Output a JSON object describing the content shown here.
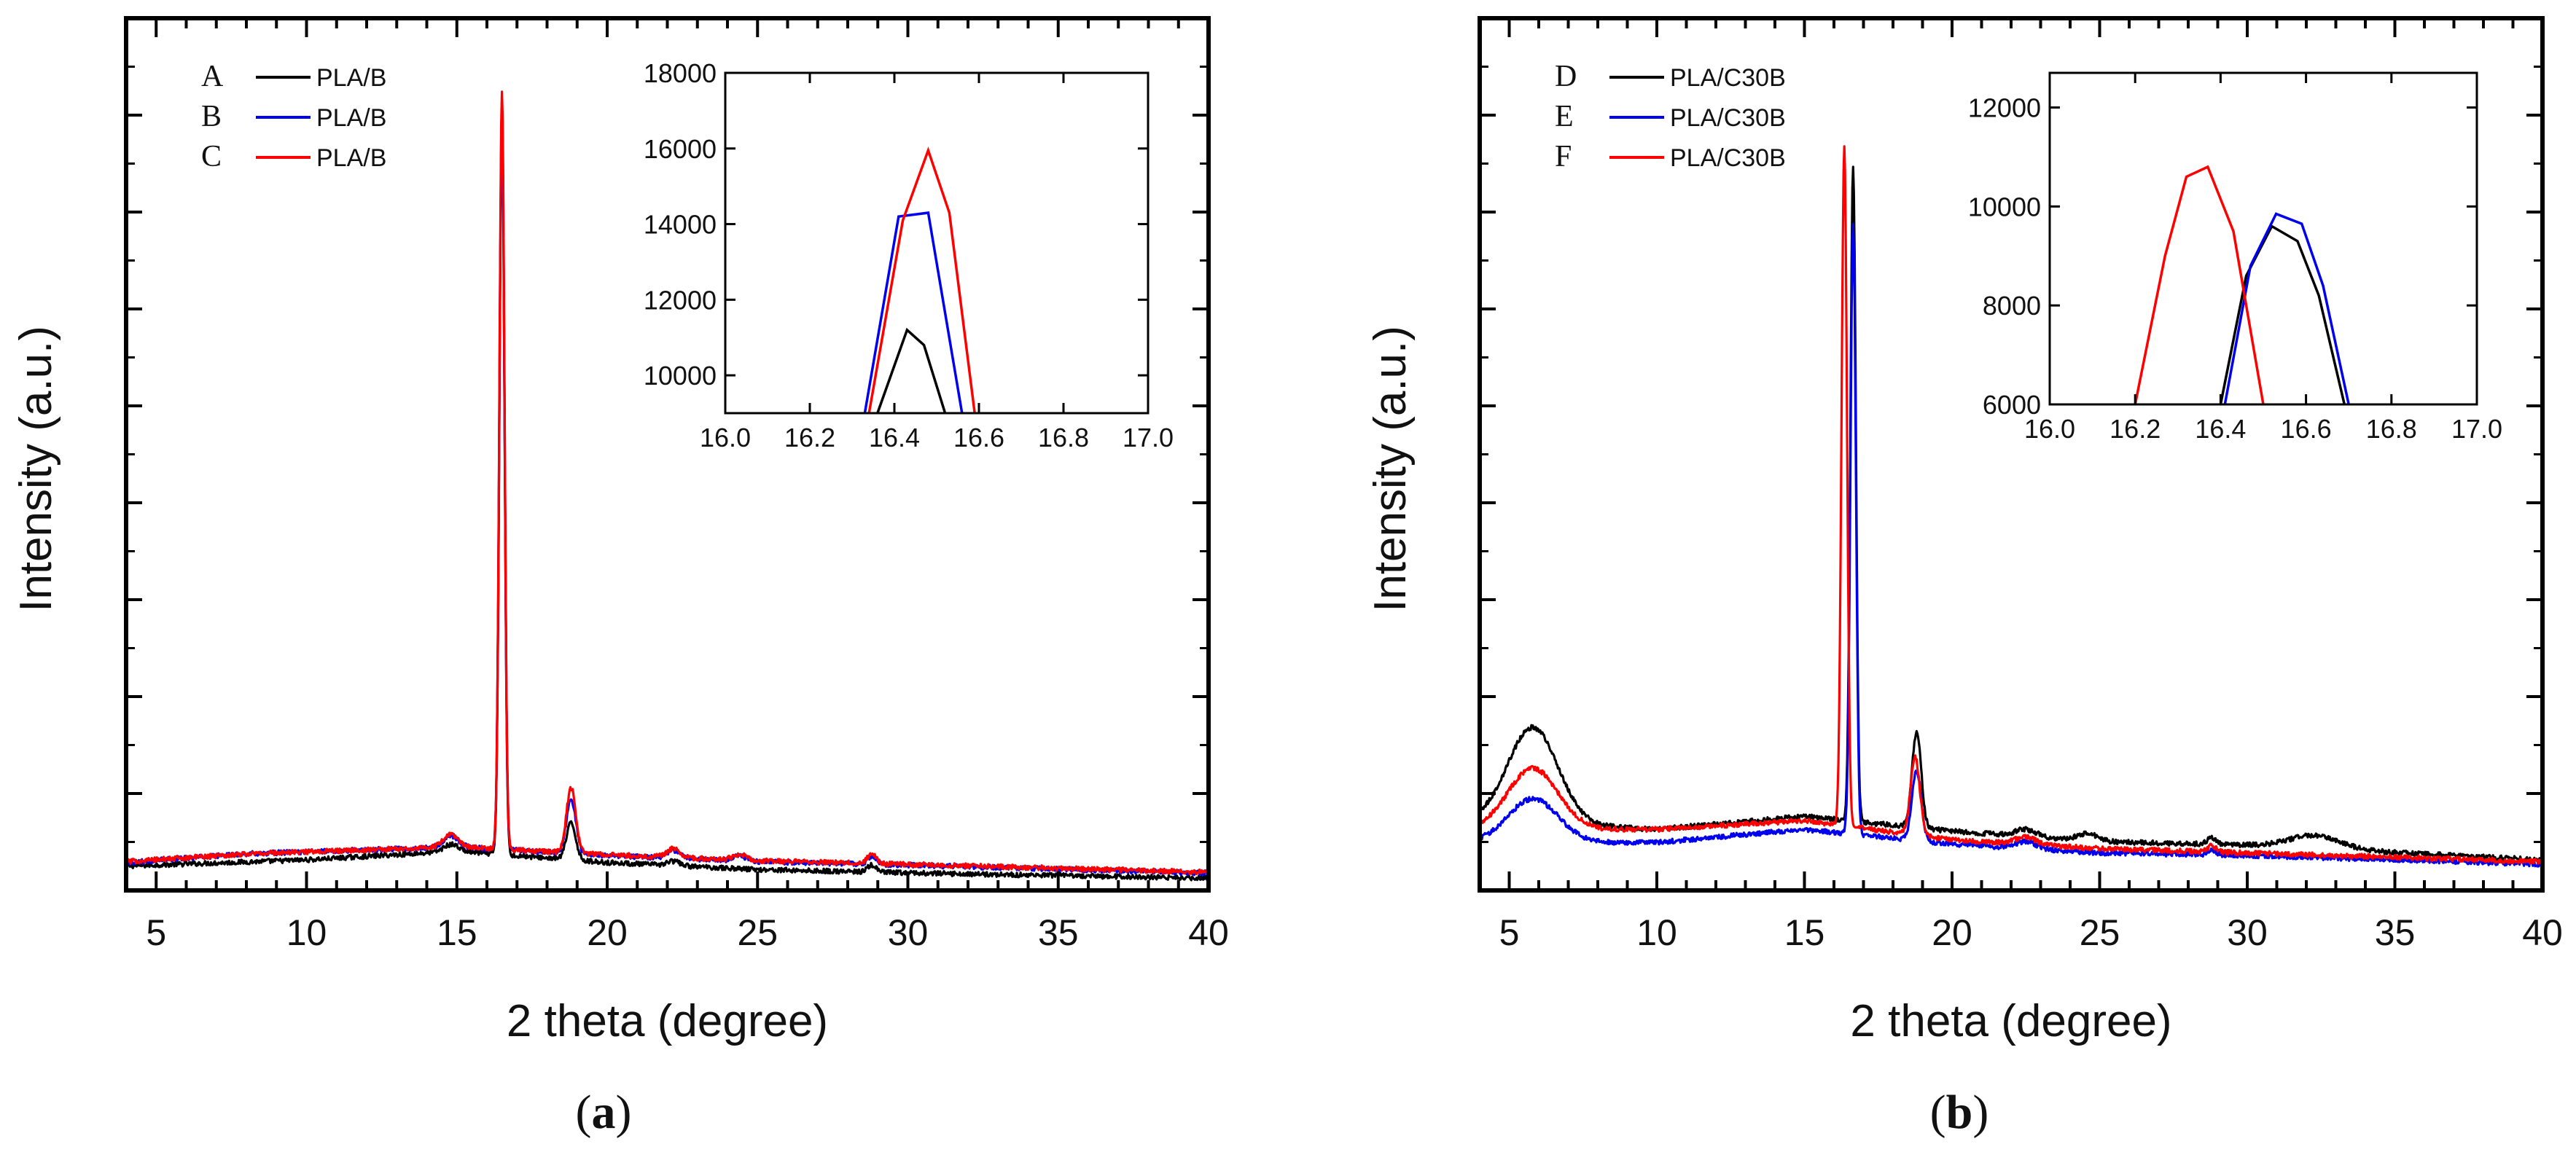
{
  "figure": {
    "captions": [
      "(a)",
      "(b)"
    ],
    "caption_parts": [
      {
        "open": "(",
        "letter": "a",
        "close": ")"
      },
      {
        "open": "(",
        "letter": "b",
        "close": ")"
      }
    ]
  },
  "colors": {
    "black": "#000000",
    "blue": "#0000ee",
    "red": "#ff0000"
  },
  "chart_data": [
    {
      "type": "line",
      "caption": "(a)",
      "xlabel": "2 theta (degree)",
      "ylabel": "Intensity (a.u.)",
      "xlim": [
        4,
        40
      ],
      "ylim": [
        0,
        100
      ],
      "xticks": [
        5,
        10,
        15,
        20,
        25,
        30,
        35,
        40
      ],
      "yticks_minor_count": 9,
      "grid": false,
      "legend": {
        "location": "top-left",
        "entries": [
          {
            "letter": "A",
            "label": "PLA/B",
            "color": "#000000"
          },
          {
            "letter": "B",
            "label": "PLA/B",
            "color": "#0000ee"
          },
          {
            "letter": "C",
            "label": "PLA/B",
            "color": "#ff0000"
          }
        ]
      },
      "series": [
        {
          "name": "A",
          "label": "PLA/B",
          "color": "#000000",
          "baseline": [
            [
              4,
              2.8
            ],
            [
              10,
              3.5
            ],
            [
              15,
              4.5
            ],
            [
              20,
              3.2
            ],
            [
              25,
              2.4
            ],
            [
              30,
              2.0
            ],
            [
              40,
              1.4
            ]
          ],
          "peaks": [
            [
              14.8,
              0.8,
              0.35
            ],
            [
              16.5,
              84,
              0.12
            ],
            [
              18.8,
              4.2,
              0.22
            ],
            [
              22.2,
              0.5,
              0.3
            ],
            [
              28.8,
              0.8,
              0.2
            ]
          ]
        },
        {
          "name": "B",
          "label": "PLA/B",
          "color": "#0000ee",
          "baseline": [
            [
              4,
              3.2
            ],
            [
              8,
              4.2
            ],
            [
              15,
              5.0
            ],
            [
              20,
              4.0
            ],
            [
              25,
              3.3
            ],
            [
              30,
              2.9
            ],
            [
              40,
              2.0
            ]
          ],
          "peaks": [
            [
              14.8,
              1.3,
              0.35
            ],
            [
              16.5,
              85,
              0.12
            ],
            [
              18.8,
              6.2,
              0.22
            ],
            [
              22.2,
              0.9,
              0.3
            ],
            [
              24.4,
              0.6,
              0.3
            ],
            [
              28.8,
              0.9,
              0.2
            ]
          ]
        },
        {
          "name": "C",
          "label": "PLA/B",
          "color": "#ff0000",
          "baseline": [
            [
              4,
              3.3
            ],
            [
              8,
              4.2
            ],
            [
              15,
              5.0
            ],
            [
              20,
              4.1
            ],
            [
              25,
              3.4
            ],
            [
              30,
              3.0
            ],
            [
              40,
              2.1
            ]
          ],
          "peaks": [
            [
              14.8,
              1.4,
              0.35
            ],
            [
              16.5,
              87,
              0.12
            ],
            [
              18.8,
              7.4,
              0.22
            ],
            [
              22.2,
              1.0,
              0.3
            ],
            [
              24.4,
              0.7,
              0.3
            ],
            [
              28.8,
              1.1,
              0.2
            ]
          ]
        }
      ],
      "inset": {
        "xlim": [
          16.0,
          17.0
        ],
        "ylim": [
          9000,
          18000
        ],
        "xticks": [
          "16.0",
          "16.2",
          "16.4",
          "16.6",
          "16.8",
          "17.0"
        ],
        "yticks": [
          "10000",
          "12000",
          "14000",
          "16000",
          "18000"
        ],
        "series": [
          {
            "name": "A",
            "color": "#000000",
            "points": [
              [
                16.36,
                9000
              ],
              [
                16.43,
                11200
              ],
              [
                16.47,
                10800
              ],
              [
                16.52,
                9000
              ]
            ]
          },
          {
            "name": "B",
            "color": "#0000ee",
            "points": [
              [
                16.33,
                9000
              ],
              [
                16.41,
                14200
              ],
              [
                16.48,
                14300
              ],
              [
                16.56,
                9000
              ]
            ]
          },
          {
            "name": "C",
            "color": "#ff0000",
            "points": [
              [
                16.34,
                9000
              ],
              [
                16.42,
                14100
              ],
              [
                16.48,
                15950
              ],
              [
                16.53,
                14300
              ],
              [
                16.59,
                9000
              ]
            ]
          }
        ]
      }
    },
    {
      "type": "line",
      "caption": "(b)",
      "xlabel": "2 theta (degree)",
      "ylabel": "Intensity (a.u.)",
      "xlim": [
        4,
        40
      ],
      "ylim": [
        0,
        100
      ],
      "xticks": [
        5,
        10,
        15,
        20,
        25,
        30,
        35,
        40
      ],
      "yticks_minor_count": 9,
      "grid": false,
      "legend": {
        "location": "top-left",
        "entries": [
          {
            "letter": "D",
            "label": "PLA/C30B",
            "color": "#000000"
          },
          {
            "letter": "E",
            "label": "PLA/C30B",
            "color": "#0000ee"
          },
          {
            "letter": "F",
            "label": "PLA/C30B",
            "color": "#ff0000"
          }
        ]
      },
      "series": [
        {
          "name": "D",
          "label": "PLA/C30B",
          "color": "#000000",
          "baseline": [
            [
              4,
              8
            ],
            [
              10,
              7
            ],
            [
              15,
              8.5
            ],
            [
              20,
              6.8
            ],
            [
              25,
              5.6
            ],
            [
              30,
              5.2
            ],
            [
              40,
              3.5
            ]
          ],
          "peaks": [
            [
              5.8,
              11,
              1.2
            ],
            [
              16.65,
              75,
              0.13
            ],
            [
              18.8,
              11,
              0.22
            ],
            [
              22.5,
              0.8,
              0.5
            ],
            [
              24.6,
              0.8,
              0.5
            ],
            [
              28.8,
              0.8,
              0.2
            ],
            [
              32.3,
              1.5,
              1.2
            ]
          ]
        },
        {
          "name": "E",
          "label": "PLA/C30B",
          "color": "#0000ee",
          "baseline": [
            [
              4,
              5.5
            ],
            [
              10,
              5.5
            ],
            [
              15,
              7
            ],
            [
              20,
              5.3
            ],
            [
              25,
              4.3
            ],
            [
              30,
              4.0
            ],
            [
              40,
              3.0
            ]
          ],
          "peaks": [
            [
              5.8,
              5,
              1.2
            ],
            [
              16.65,
              70,
              0.13
            ],
            [
              18.8,
              8,
              0.22
            ],
            [
              22.5,
              0.8,
              0.5
            ],
            [
              28.8,
              0.6,
              0.2
            ]
          ]
        },
        {
          "name": "F",
          "label": "PLA/C30B",
          "color": "#ff0000",
          "baseline": [
            [
              4,
              7
            ],
            [
              10,
              7
            ],
            [
              15,
              8
            ],
            [
              20,
              5.8
            ],
            [
              25,
              4.8
            ],
            [
              30,
              4.3
            ],
            [
              40,
              3.3
            ]
          ],
          "peaks": [
            [
              5.8,
              7,
              1.2
            ],
            [
              16.35,
              78,
              0.13
            ],
            [
              18.75,
              9,
              0.22
            ],
            [
              22.5,
              0.8,
              0.5
            ],
            [
              28.8,
              0.7,
              0.2
            ]
          ]
        }
      ],
      "inset": {
        "xlim": [
          16.0,
          17.0
        ],
        "ylim": [
          6000,
          12700
        ],
        "xticks": [
          "16.0",
          "16.2",
          "16.4",
          "16.6",
          "16.8",
          "17.0"
        ],
        "yticks": [
          "6000",
          "8000",
          "10000",
          "12000"
        ],
        "series": [
          {
            "name": "D",
            "color": "#000000",
            "points": [
              [
                16.4,
                6000
              ],
              [
                16.46,
                8600
              ],
              [
                16.52,
                9600
              ],
              [
                16.58,
                9300
              ],
              [
                16.63,
                8200
              ],
              [
                16.69,
                6000
              ]
            ]
          },
          {
            "name": "E",
            "color": "#0000ee",
            "points": [
              [
                16.41,
                6000
              ],
              [
                16.47,
                8800
              ],
              [
                16.53,
                9850
              ],
              [
                16.59,
                9650
              ],
              [
                16.64,
                8400
              ],
              [
                16.7,
                6000
              ]
            ]
          },
          {
            "name": "F",
            "color": "#ff0000",
            "points": [
              [
                16.2,
                6000
              ],
              [
                16.27,
                9000
              ],
              [
                16.32,
                10600
              ],
              [
                16.37,
                10800
              ],
              [
                16.43,
                9500
              ],
              [
                16.5,
                6000
              ]
            ]
          }
        ]
      }
    }
  ]
}
